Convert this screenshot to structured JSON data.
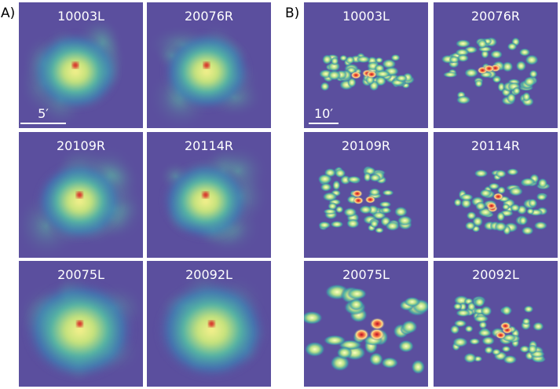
{
  "panel_a": {
    "label": "A)",
    "scale_bar": "5′",
    "images": [
      "10003L",
      "20076R",
      "20109R",
      "20114R",
      "20075L",
      "20092L"
    ]
  },
  "panel_b": {
    "label": "B)",
    "scale_bar": "10′",
    "images": [
      "10003L",
      "20076R",
      "20109R",
      "20114R",
      "20075L",
      "20092L"
    ]
  }
}
